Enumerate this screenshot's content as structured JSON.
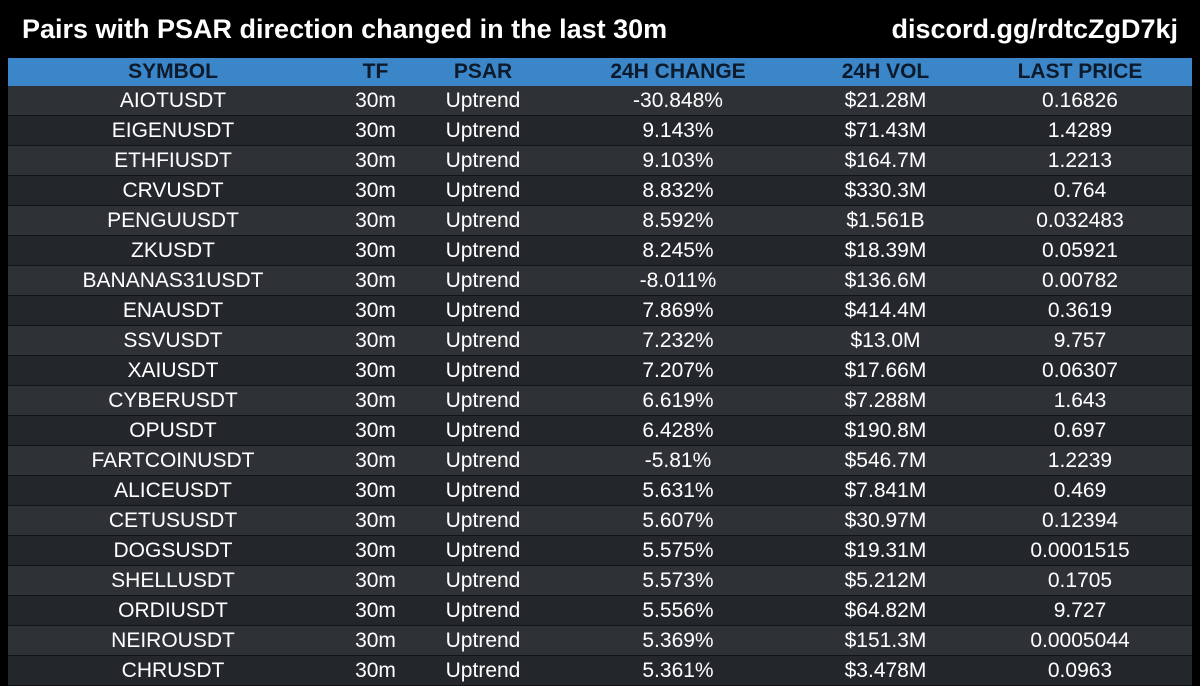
{
  "header": {
    "title": "Pairs with PSAR direction changed in the last 30m",
    "link": "discord.gg/rdtcZgD7kj"
  },
  "table": {
    "columns": [
      "SYMBOL",
      "TF",
      "PSAR",
      "24H CHANGE",
      "24H VOL",
      "LAST PRICE"
    ],
    "rows": [
      [
        "AIOTUSDT",
        "30m",
        "Uptrend",
        "-30.848%",
        "$21.28M",
        "0.16826"
      ],
      [
        "EIGENUSDT",
        "30m",
        "Uptrend",
        "9.143%",
        "$71.43M",
        "1.4289"
      ],
      [
        "ETHFIUSDT",
        "30m",
        "Uptrend",
        "9.103%",
        "$164.7M",
        "1.2213"
      ],
      [
        "CRVUSDT",
        "30m",
        "Uptrend",
        "8.832%",
        "$330.3M",
        "0.764"
      ],
      [
        "PENGUUSDT",
        "30m",
        "Uptrend",
        "8.592%",
        "$1.561B",
        "0.032483"
      ],
      [
        "ZKUSDT",
        "30m",
        "Uptrend",
        "8.245%",
        "$18.39M",
        "0.05921"
      ],
      [
        "BANANAS31USDT",
        "30m",
        "Uptrend",
        "-8.011%",
        "$136.6M",
        "0.00782"
      ],
      [
        "ENAUSDT",
        "30m",
        "Uptrend",
        "7.869%",
        "$414.4M",
        "0.3619"
      ],
      [
        "SSVUSDT",
        "30m",
        "Uptrend",
        "7.232%",
        "$13.0M",
        "9.757"
      ],
      [
        "XAIUSDT",
        "30m",
        "Uptrend",
        "7.207%",
        "$17.66M",
        "0.06307"
      ],
      [
        "CYBERUSDT",
        "30m",
        "Uptrend",
        "6.619%",
        "$7.288M",
        "1.643"
      ],
      [
        "OPUSDT",
        "30m",
        "Uptrend",
        "6.428%",
        "$190.8M",
        "0.697"
      ],
      [
        "FARTCOINUSDT",
        "30m",
        "Uptrend",
        "-5.81%",
        "$546.7M",
        "1.2239"
      ],
      [
        "ALICEUSDT",
        "30m",
        "Uptrend",
        "5.631%",
        "$7.841M",
        "0.469"
      ],
      [
        "CETUSUSDT",
        "30m",
        "Uptrend",
        "5.607%",
        "$30.97M",
        "0.12394"
      ],
      [
        "DOGSUSDT",
        "30m",
        "Uptrend",
        "5.575%",
        "$19.31M",
        "0.0001515"
      ],
      [
        "SHELLUSDT",
        "30m",
        "Uptrend",
        "5.573%",
        "$5.212M",
        "0.1705"
      ],
      [
        "ORDIUSDT",
        "30m",
        "Uptrend",
        "5.556%",
        "$64.82M",
        "9.727"
      ],
      [
        "NEIROUSDT",
        "30m",
        "Uptrend",
        "5.369%",
        "$151.3M",
        "0.0005044"
      ],
      [
        "CHRUSDT",
        "30m",
        "Uptrend",
        "5.361%",
        "$3.478M",
        "0.0963"
      ]
    ]
  },
  "colors": {
    "header_bg": "#3a86c8",
    "row_even": "#2e3237",
    "row_odd": "#23272c",
    "page_bg": "#000000"
  }
}
